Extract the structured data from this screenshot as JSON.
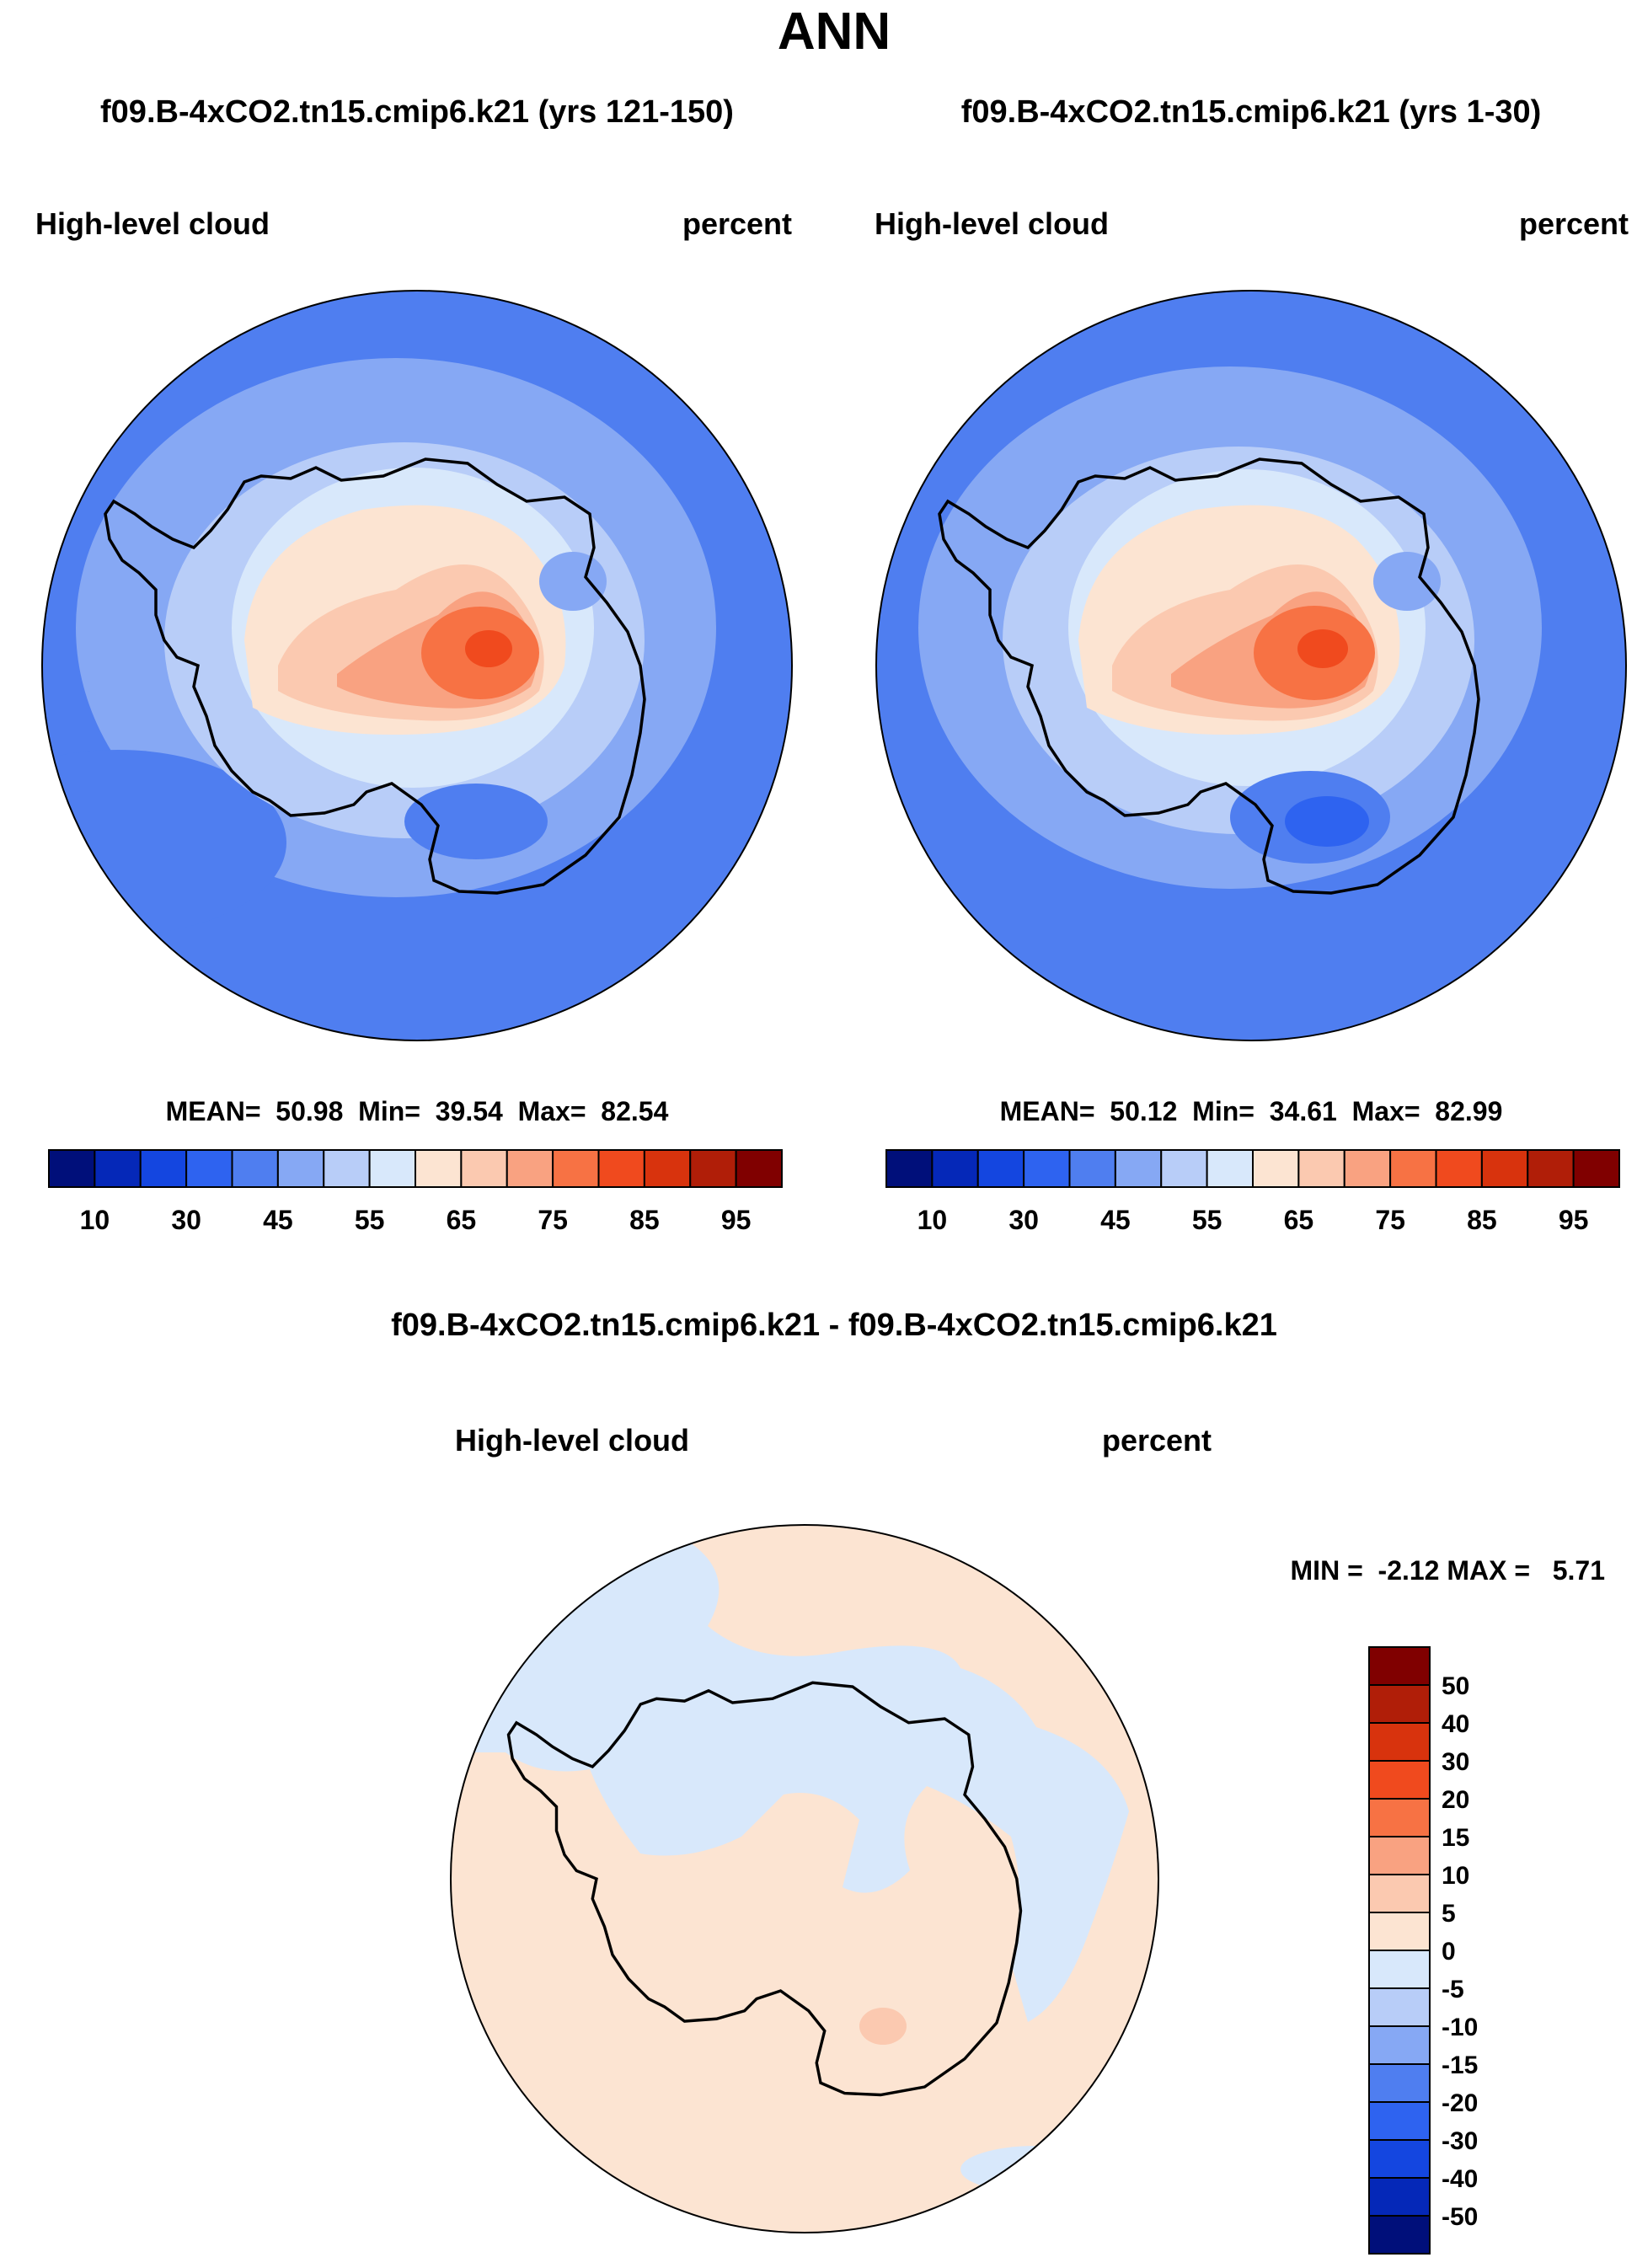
{
  "figure_title": "ANN",
  "panels": [
    {
      "title": "f09.B-4xCO2.tn15.cmip6.k21 (yrs 121-150)",
      "left_label": "High-level cloud",
      "right_label": "percent",
      "stats": "MEAN=  50.98  Min=  39.54  Max=  82.54"
    },
    {
      "title": "f09.B-4xCO2.tn15.cmip6.k21 (yrs 1-30)",
      "left_label": "High-level cloud",
      "right_label": "percent",
      "stats": "MEAN=  50.12  Min=  34.61  Max=  82.99"
    },
    {
      "title": "f09.B-4xCO2.tn15.cmip6.k21 - f09.B-4xCO2.tn15.cmip6.k21",
      "left_label": "High-level cloud",
      "right_label": "percent",
      "stats": "MIN =  -2.12 MAX =   5.71"
    }
  ],
  "chart_data": [
    {
      "type": "heatmap",
      "projection": "south-polar-stereographic",
      "field": "High-level cloud",
      "units": "percent",
      "mean": 50.98,
      "min": 39.54,
      "max": 82.54,
      "colorbar": {
        "orientation": "horizontal",
        "levels": [
          10,
          20,
          30,
          40,
          45,
          50,
          55,
          60,
          65,
          70,
          75,
          80,
          85,
          90,
          95
        ],
        "tick_labels": [
          "10",
          "30",
          "45",
          "55",
          "65",
          "75",
          "85",
          "95"
        ],
        "colors": [
          "#000f7a",
          "#0528b8",
          "#1446e0",
          "#2e63f0",
          "#4f7ef0",
          "#86a8f4",
          "#b8cdf8",
          "#d8e8fb",
          "#fce4d2",
          "#fbc9b0",
          "#f9a281",
          "#f77244",
          "#f04a1e",
          "#d8330d",
          "#b01e08",
          "#800000"
        ]
      }
    },
    {
      "type": "heatmap",
      "projection": "south-polar-stereographic",
      "field": "High-level cloud",
      "units": "percent",
      "mean": 50.12,
      "min": 34.61,
      "max": 82.99,
      "colorbar": {
        "orientation": "horizontal",
        "levels": [
          10,
          20,
          30,
          40,
          45,
          50,
          55,
          60,
          65,
          70,
          75,
          80,
          85,
          90,
          95
        ],
        "tick_labels": [
          "10",
          "30",
          "45",
          "55",
          "65",
          "75",
          "85",
          "95"
        ],
        "colors": [
          "#000f7a",
          "#0528b8",
          "#1446e0",
          "#2e63f0",
          "#4f7ef0",
          "#86a8f4",
          "#b8cdf8",
          "#d8e8fb",
          "#fce4d2",
          "#fbc9b0",
          "#f9a281",
          "#f77244",
          "#f04a1e",
          "#d8330d",
          "#b01e08",
          "#800000"
        ]
      }
    },
    {
      "type": "heatmap",
      "projection": "south-polar-stereographic",
      "field": "High-level cloud (difference)",
      "units": "percent",
      "min": -2.12,
      "max": 5.71,
      "colorbar": {
        "orientation": "vertical",
        "tick_labels": [
          "50",
          "40",
          "30",
          "20",
          "15",
          "10",
          "5",
          "0",
          "-5",
          "-10",
          "-15",
          "-20",
          "-30",
          "-40",
          "-50"
        ],
        "colors": [
          "#800000",
          "#b01e08",
          "#d8330d",
          "#f04a1e",
          "#f77244",
          "#f9a281",
          "#fbc9b0",
          "#fce4d2",
          "#d8e8fb",
          "#b8cdf8",
          "#86a8f4",
          "#4f7ef0",
          "#2e63f0",
          "#1446e0",
          "#0528b8",
          "#000f7a"
        ]
      }
    }
  ]
}
